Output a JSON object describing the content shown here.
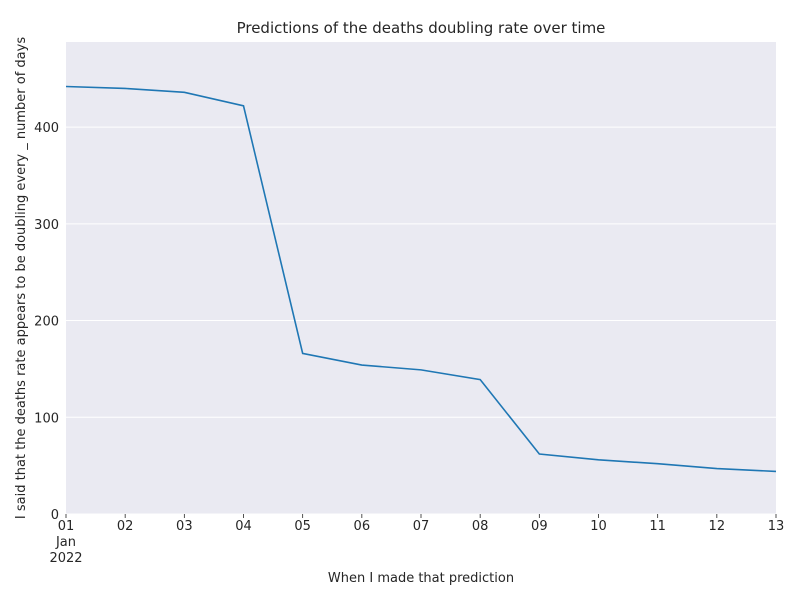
{
  "chart_data": {
    "type": "line",
    "title": "Predictions of the deaths doubling rate over time",
    "xlabel": "When I made that prediction",
    "ylabel": "I said that the deaths rate appears to be doubling every _ number of days",
    "x": [
      "2022-01-01",
      "2022-01-02",
      "2022-01-03",
      "2022-01-04",
      "2022-01-05",
      "2022-01-06",
      "2022-01-07",
      "2022-01-08",
      "2022-01-09",
      "2022-01-10",
      "2022-01-11",
      "2022-01-12",
      "2022-01-13"
    ],
    "x_tick_labels": [
      "01",
      "02",
      "03",
      "04",
      "05",
      "06",
      "07",
      "08",
      "09",
      "10",
      "11",
      "12",
      "13"
    ],
    "x_tick_sublabel_month": "Jan",
    "x_tick_sublabel_year": "2022",
    "series": [
      {
        "values": [
          442,
          440,
          436,
          422,
          166,
          154,
          149,
          139,
          62,
          56,
          52,
          47,
          44
        ],
        "color": "#1f77b4"
      }
    ],
    "y_ticks": [
      0,
      100,
      200,
      300,
      400
    ],
    "ylim": [
      0,
      488
    ],
    "grid": "horizontal",
    "background": "#eaeaf2"
  }
}
